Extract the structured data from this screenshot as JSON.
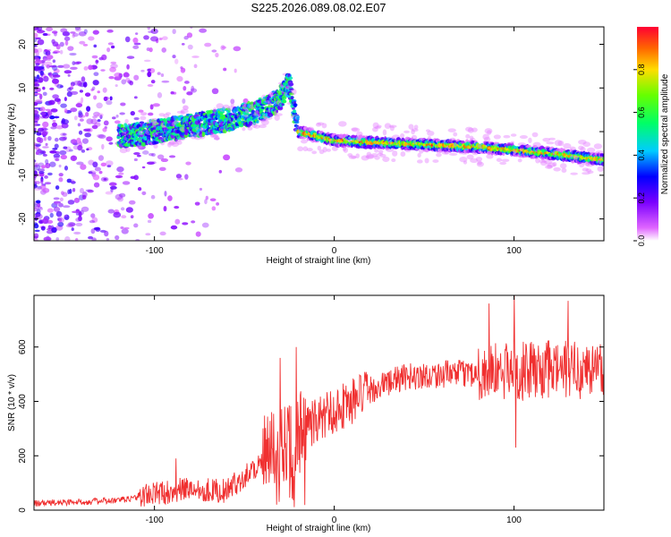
{
  "title": "S225.2026.089.08.02.E07",
  "chart_data": [
    {
      "type": "heatmap",
      "xlabel": "Height of straight line (km)",
      "ylabel": "Frequency (Hz)",
      "xlim": [
        -167,
        150
      ],
      "ylim": [
        -25,
        24
      ],
      "xticks": [
        -100,
        0,
        100
      ],
      "yticks": [
        -20,
        -10,
        0,
        10,
        20
      ],
      "colorbar": {
        "label": "Normalized spectral amplitude",
        "range": [
          0,
          1
        ],
        "ticks": [
          "0.0",
          "0.2",
          "0.4",
          "0.6",
          "0.8"
        ]
      },
      "ridge": {
        "x": [
          -115,
          -100,
          -85,
          -70,
          -55,
          -40,
          -32,
          -28,
          -25,
          -20,
          0,
          20,
          40,
          60,
          80,
          100,
          120,
          140,
          150
        ],
        "y": [
          -1,
          0,
          1,
          2,
          3,
          5,
          7,
          9,
          11,
          0,
          -2,
          -2.5,
          -2.8,
          -3.2,
          -3.5,
          -4.2,
          -5,
          -6,
          -6.5
        ]
      }
    },
    {
      "type": "line",
      "xlabel": "Height of straight line (km)",
      "ylabel": "SNR (10 * v/v)",
      "xlim": [
        -167,
        150
      ],
      "ylim": [
        0,
        790
      ],
      "xticks": [
        -100,
        0,
        100
      ],
      "yticks": [
        0,
        200,
        400,
        600
      ],
      "color": "#f03030",
      "trend": {
        "x": [
          -167,
          -120,
          -100,
          -80,
          -60,
          -40,
          -30,
          -20,
          -10,
          0,
          10,
          20,
          30,
          40,
          60,
          80,
          100,
          120,
          150
        ],
        "y": [
          25,
          35,
          60,
          80,
          70,
          180,
          250,
          290,
          330,
          370,
          400,
          440,
          470,
          490,
          500,
          505,
          510,
          515,
          520
        ]
      },
      "spikes": [
        {
          "x": -88,
          "y": 190
        },
        {
          "x": -30,
          "y": 560
        },
        {
          "x": -21,
          "y": 600
        },
        {
          "x": 86,
          "y": 760
        },
        {
          "x": 100,
          "y": 790
        },
        {
          "x": 101,
          "y": 230
        },
        {
          "x": 130,
          "y": 770
        },
        {
          "x": 148,
          "y": 610
        }
      ]
    }
  ]
}
